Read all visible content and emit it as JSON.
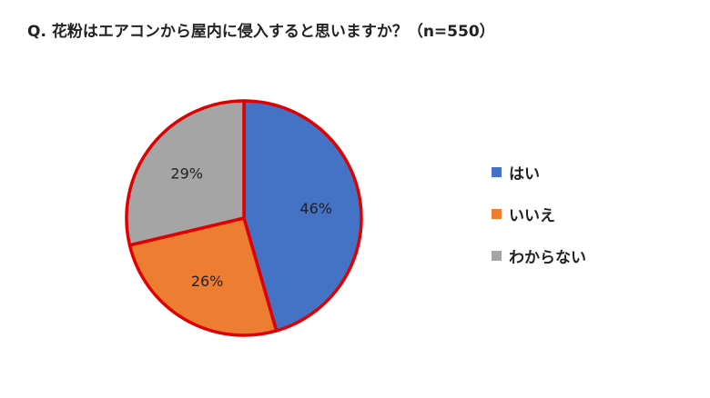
{
  "chart_data": {
    "type": "pie",
    "title": "Q. 花粉はエアコンから屋内に侵入すると思いますか？（n=550）",
    "slices": [
      {
        "label": "はい",
        "value": 46,
        "display": "46%",
        "color": "#4472C4"
      },
      {
        "label": "いいえ",
        "value": 26,
        "display": "26%",
        "color": "#ED7D31"
      },
      {
        "label": "わからない",
        "value": 29,
        "display": "29%",
        "color": "#A5A5A5"
      }
    ],
    "start_angle_deg": 0,
    "direction": "clockwise",
    "outline_color": "#E00000",
    "legend_position": "right"
  }
}
